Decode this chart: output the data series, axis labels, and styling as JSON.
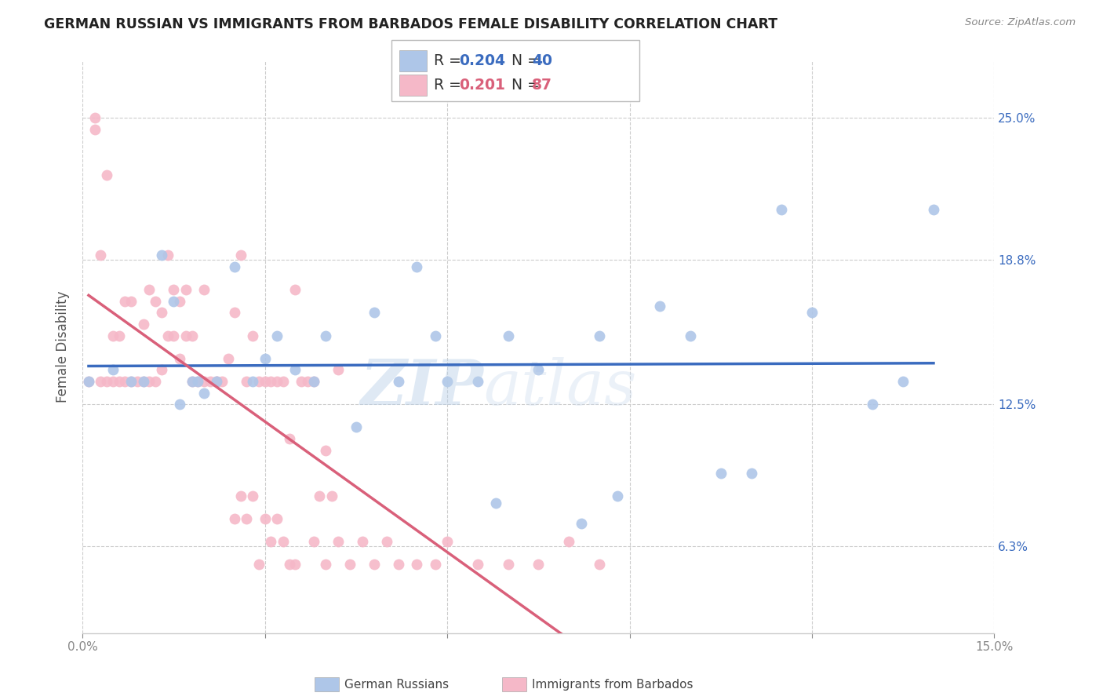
{
  "title": "GERMAN RUSSIAN VS IMMIGRANTS FROM BARBADOS FEMALE DISABILITY CORRELATION CHART",
  "source": "Source: ZipAtlas.com",
  "ylabel": "Female Disability",
  "xlim": [
    0.0,
    0.15
  ],
  "ylim": [
    0.025,
    0.275
  ],
  "xtick_positions": [
    0.0,
    0.03,
    0.06,
    0.09,
    0.12,
    0.15
  ],
  "xticklabels": [
    "0.0%",
    "",
    "",
    "",
    "",
    "15.0%"
  ],
  "ytick_positions": [
    0.063,
    0.125,
    0.188,
    0.25
  ],
  "ytick_labels": [
    "6.3%",
    "12.5%",
    "18.8%",
    "25.0%"
  ],
  "blue_scatter_color": "#aec6e8",
  "pink_scatter_color": "#f5b8c8",
  "blue_line_color": "#3a6bbf",
  "pink_line_color": "#d9607a",
  "pink_dash_color": "#e8a0b0",
  "legend_R1": "R = 0.204",
  "legend_N1": "N = 40",
  "legend_R2": "R = 0.201",
  "legend_N2": "N = 87",
  "watermark_zip": "ZIP",
  "watermark_atlas": "atlas",
  "blue_x": [
    0.001,
    0.005,
    0.008,
    0.01,
    0.013,
    0.015,
    0.016,
    0.018,
    0.019,
    0.02,
    0.022,
    0.025,
    0.028,
    0.03,
    0.032,
    0.035,
    0.038,
    0.04,
    0.045,
    0.048,
    0.052,
    0.055,
    0.058,
    0.06,
    0.065,
    0.068,
    0.07,
    0.075,
    0.082,
    0.085,
    0.088,
    0.095,
    0.1,
    0.105,
    0.11,
    0.115,
    0.12,
    0.13,
    0.14,
    0.135
  ],
  "blue_y": [
    0.135,
    0.14,
    0.135,
    0.135,
    0.19,
    0.17,
    0.125,
    0.135,
    0.135,
    0.13,
    0.135,
    0.185,
    0.135,
    0.145,
    0.155,
    0.14,
    0.135,
    0.155,
    0.115,
    0.165,
    0.135,
    0.185,
    0.155,
    0.135,
    0.135,
    0.082,
    0.155,
    0.14,
    0.073,
    0.155,
    0.085,
    0.168,
    0.155,
    0.095,
    0.095,
    0.21,
    0.165,
    0.125,
    0.21,
    0.135
  ],
  "pink_x": [
    0.001,
    0.002,
    0.002,
    0.003,
    0.003,
    0.004,
    0.004,
    0.005,
    0.005,
    0.006,
    0.006,
    0.007,
    0.007,
    0.008,
    0.008,
    0.009,
    0.01,
    0.01,
    0.011,
    0.011,
    0.012,
    0.012,
    0.013,
    0.013,
    0.014,
    0.014,
    0.015,
    0.015,
    0.016,
    0.016,
    0.017,
    0.017,
    0.018,
    0.018,
    0.019,
    0.02,
    0.02,
    0.021,
    0.022,
    0.022,
    0.023,
    0.024,
    0.025,
    0.026,
    0.027,
    0.028,
    0.029,
    0.03,
    0.031,
    0.032,
    0.033,
    0.034,
    0.035,
    0.036,
    0.037,
    0.038,
    0.039,
    0.04,
    0.041,
    0.042,
    0.025,
    0.026,
    0.027,
    0.028,
    0.029,
    0.03,
    0.031,
    0.032,
    0.033,
    0.034,
    0.035,
    0.038,
    0.04,
    0.042,
    0.044,
    0.046,
    0.048,
    0.05,
    0.052,
    0.055,
    0.058,
    0.06,
    0.065,
    0.07,
    0.075,
    0.08,
    0.085
  ],
  "pink_y": [
    0.135,
    0.25,
    0.245,
    0.135,
    0.19,
    0.135,
    0.225,
    0.135,
    0.155,
    0.135,
    0.155,
    0.135,
    0.17,
    0.135,
    0.17,
    0.135,
    0.135,
    0.16,
    0.135,
    0.175,
    0.135,
    0.17,
    0.14,
    0.165,
    0.155,
    0.19,
    0.155,
    0.175,
    0.17,
    0.145,
    0.175,
    0.155,
    0.135,
    0.155,
    0.135,
    0.135,
    0.175,
    0.135,
    0.135,
    0.135,
    0.135,
    0.145,
    0.165,
    0.19,
    0.135,
    0.155,
    0.135,
    0.135,
    0.135,
    0.135,
    0.135,
    0.11,
    0.175,
    0.135,
    0.135,
    0.135,
    0.085,
    0.105,
    0.085,
    0.14,
    0.075,
    0.085,
    0.075,
    0.085,
    0.055,
    0.075,
    0.065,
    0.075,
    0.065,
    0.055,
    0.055,
    0.065,
    0.055,
    0.065,
    0.055,
    0.065,
    0.055,
    0.065,
    0.055,
    0.055,
    0.055,
    0.065,
    0.055,
    0.055,
    0.055,
    0.065,
    0.055
  ]
}
